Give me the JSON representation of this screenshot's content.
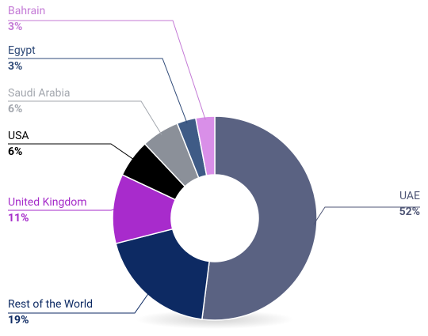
{
  "chart_data": {
    "type": "donut",
    "categories": [
      "UAE",
      "Rest of the World",
      "United Kingdom",
      "USA",
      "Saudi Arabia",
      "Egypt",
      "Bahrain"
    ],
    "values": [
      52,
      19,
      11,
      6,
      6,
      3,
      3
    ],
    "value_labels": [
      "52%",
      "19%",
      "11%",
      "6%",
      "6%",
      "3%",
      "3%"
    ],
    "colors": [
      "#5a6282",
      "#0d2a63",
      "#a82bcc",
      "#000000",
      "#8b9099",
      "#3f5b86",
      "#d98fe8"
    ],
    "label_colors": [
      "#4f5676",
      "#0d2a63",
      "#a52bc9",
      "#000000",
      "#a3a7ae",
      "#2f4a78",
      "#c47ad6"
    ]
  }
}
